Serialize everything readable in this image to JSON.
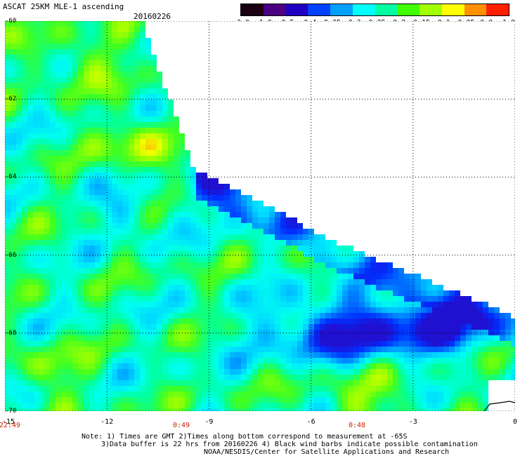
{
  "header": {
    "title": "ASCAT 25KM MLE-1 ascending",
    "date": "20160226"
  },
  "colorbar": {
    "labels": [
      "-3.0",
      "-1.0",
      "-0.5",
      "-0.4",
      "-0.35",
      "-0.3",
      "-0.25",
      "-0.2",
      "-0.15",
      "-0.1",
      "-0.05",
      "0.0",
      "1.0"
    ],
    "colors": [
      "#1a0010",
      "#4a0080",
      "#2000c0",
      "#0040ff",
      "#00a0ff",
      "#00ffff",
      "#00ffa0",
      "#40ff00",
      "#a0ff00",
      "#ffff00",
      "#ff9000",
      "#ff2000"
    ]
  },
  "map": {
    "lat_labels": [
      "-60",
      "-62",
      "-64",
      "-66",
      "-68",
      "-70"
    ],
    "lon_labels": [
      "-15",
      "-12",
      "-9",
      "-6",
      "-3",
      "0"
    ],
    "time_labels": [
      "22:49",
      "0:49",
      "0:48"
    ],
    "lat_range": [
      -70,
      -60
    ],
    "lon_range": [
      -15,
      0
    ],
    "grid": true
  },
  "notes": {
    "line1": "Note: 1) Times are GMT 2)Times along bottom correspond to measurement at -65S",
    "line2": "3)Data buffer is 22 hrs from 20160226 4) Black wind barbs indicate possible contamination",
    "line3": "NOAA/NESDIS/Center for Satellite Applications and Research"
  }
}
